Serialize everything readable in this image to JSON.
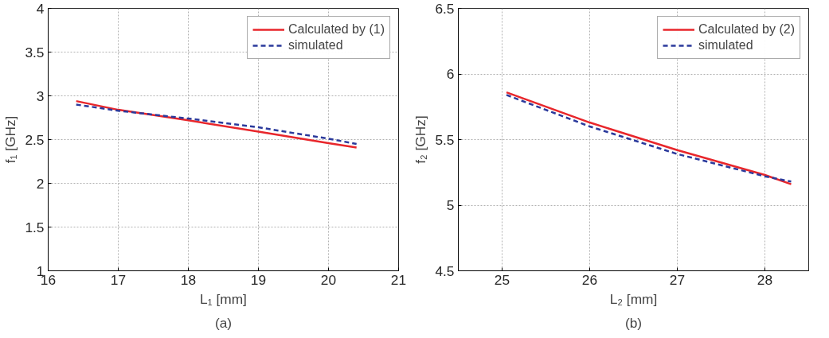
{
  "chart_data": [
    {
      "type": "line",
      "xlabel": "L₁ [mm]",
      "ylabel": "f₁ [GHz]",
      "annotations": [
        "(a)"
      ],
      "xlim": [
        16,
        21
      ],
      "ylim": [
        1,
        4
      ],
      "xticks": [
        16,
        17,
        18,
        19,
        20,
        21
      ],
      "yticks": [
        1,
        1.5,
        2,
        2.5,
        3,
        3.5,
        4
      ],
      "grid": true,
      "legend": "top right",
      "series": [
        {
          "name": "Calculated by (1)",
          "color": "#e8262b",
          "line_style": "solid",
          "x": [
            16.4,
            17,
            18,
            19,
            20,
            20.4
          ],
          "values": [
            2.94,
            2.84,
            2.72,
            2.59,
            2.46,
            2.41
          ]
        },
        {
          "name": "simulated",
          "color": "#2b3a9c",
          "line_style": "dashed",
          "x": [
            16.4,
            17,
            18,
            19,
            20,
            20.4
          ],
          "values": [
            2.9,
            2.83,
            2.74,
            2.64,
            2.51,
            2.45
          ]
        }
      ]
    },
    {
      "type": "line",
      "xlabel": "L₂ [mm]",
      "ylabel": "f₂ [GHz]",
      "annotations": [
        "(b)"
      ],
      "xlim": [
        24.5,
        28.5
      ],
      "ylim": [
        4.5,
        6.5
      ],
      "xticks": [
        25,
        26,
        27,
        28
      ],
      "yticks": [
        4.5,
        5,
        5.5,
        6,
        6.5
      ],
      "grid": true,
      "legend": "top right",
      "series": [
        {
          "name": "Calculated by (2)",
          "color": "#e8262b",
          "line_style": "solid",
          "x": [
            25.05,
            26,
            27,
            28,
            28.3
          ],
          "values": [
            5.86,
            5.63,
            5.42,
            5.23,
            5.16
          ]
        },
        {
          "name": "simulated",
          "color": "#2b3a9c",
          "line_style": "dashed",
          "x": [
            25.05,
            26,
            27,
            28,
            28.3
          ],
          "values": [
            5.84,
            5.6,
            5.39,
            5.22,
            5.18
          ]
        }
      ]
    }
  ]
}
